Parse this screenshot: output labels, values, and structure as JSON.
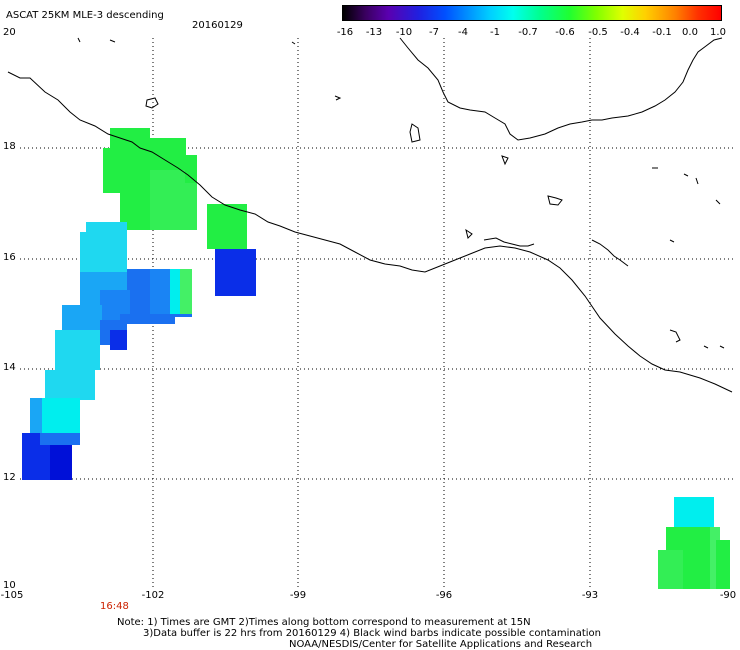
{
  "header": {
    "title": "ASCAT 25KM MLE-3 descending",
    "date": "20160129"
  },
  "colorbar": {
    "labels": [
      "-16",
      "-13",
      "-10",
      "-7",
      "-4",
      "-1",
      "-0.7",
      "-0.6",
      "-0.5",
      "-0.4",
      "-0.1",
      "0.0",
      "1.0"
    ]
  },
  "axes": {
    "y_ticks": [
      "20",
      "18",
      "16",
      "14",
      "12",
      "10"
    ],
    "x_ticks": [
      "-105",
      "-102",
      "-99",
      "-96",
      "-93",
      "-90"
    ]
  },
  "pass_time": "16:48",
  "notes": {
    "line1": "Note: 1) Times are GMT 2)Times along bottom correspond to measurement at 15N",
    "line2": "3)Data buffer is 22 hrs from 20160129 4) Black wind barbs indicate possible contamination",
    "line3": "NOAA/NESDIS/Center for Satellite Applications and Research"
  },
  "colors": {
    "green": "#22ee44",
    "light_green": "#44f066",
    "cyan": "#00eeee",
    "sky": "#1fd8f0",
    "light_blue": "#1aa6f5",
    "mid_blue": "#1a70f0",
    "deep_blue": "#0a2ee8",
    "dark_blue": "#0010d8",
    "coastline": "#000000"
  }
}
